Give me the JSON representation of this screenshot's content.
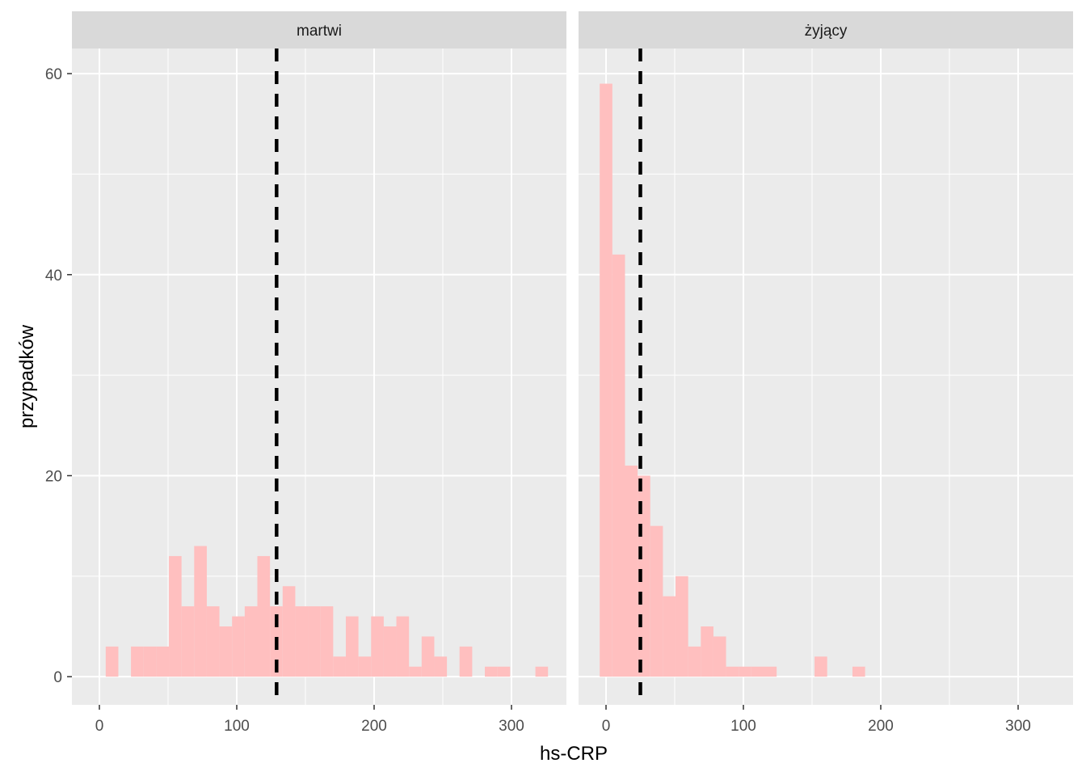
{
  "chart_data": {
    "type": "bar",
    "xlabel": "hs-CRP",
    "ylabel": "przypadków",
    "xlim": [
      -20,
      340
    ],
    "ylim": [
      -2.8,
      62.5
    ],
    "x_ticks": [
      0,
      100,
      200,
      300
    ],
    "y_ticks": [
      0,
      20,
      40,
      60
    ],
    "bin_width": 9.2,
    "grid": true,
    "colors": {
      "bar": "#ffbfbf",
      "panel_bg": "#ebebeb",
      "strip_bg": "#d9d9d9",
      "grid_major": "#ffffff",
      "vline": "#000000"
    },
    "panels": [
      {
        "label": "martwi",
        "mean_line": 129,
        "bins": [
          {
            "x": 9.2,
            "count": 3
          },
          {
            "x": 18.4,
            "count": 0
          },
          {
            "x": 27.6,
            "count": 3
          },
          {
            "x": 36.8,
            "count": 3
          },
          {
            "x": 46.0,
            "count": 3
          },
          {
            "x": 55.2,
            "count": 12
          },
          {
            "x": 64.4,
            "count": 7
          },
          {
            "x": 73.6,
            "count": 13
          },
          {
            "x": 82.8,
            "count": 7
          },
          {
            "x": 92.0,
            "count": 5
          },
          {
            "x": 101.2,
            "count": 6
          },
          {
            "x": 110.4,
            "count": 7
          },
          {
            "x": 119.6,
            "count": 12
          },
          {
            "x": 128.8,
            "count": 7
          },
          {
            "x": 138.0,
            "count": 9
          },
          {
            "x": 147.2,
            "count": 7
          },
          {
            "x": 156.4,
            "count": 7
          },
          {
            "x": 165.6,
            "count": 7
          },
          {
            "x": 174.8,
            "count": 2
          },
          {
            "x": 184.0,
            "count": 6
          },
          {
            "x": 193.2,
            "count": 2
          },
          {
            "x": 202.4,
            "count": 6
          },
          {
            "x": 211.6,
            "count": 5
          },
          {
            "x": 220.8,
            "count": 6
          },
          {
            "x": 230.0,
            "count": 1
          },
          {
            "x": 239.2,
            "count": 4
          },
          {
            "x": 248.4,
            "count": 2
          },
          {
            "x": 257.6,
            "count": 0
          },
          {
            "x": 266.8,
            "count": 3
          },
          {
            "x": 276.0,
            "count": 0
          },
          {
            "x": 285.2,
            "count": 1
          },
          {
            "x": 294.4,
            "count": 1
          },
          {
            "x": 303.6,
            "count": 0
          },
          {
            "x": 312.8,
            "count": 0
          },
          {
            "x": 322.0,
            "count": 1
          }
        ]
      },
      {
        "label": "żyjący",
        "mean_line": 25,
        "bins": [
          {
            "x": 0.0,
            "count": 59
          },
          {
            "x": 9.2,
            "count": 42
          },
          {
            "x": 18.4,
            "count": 21
          },
          {
            "x": 27.6,
            "count": 20
          },
          {
            "x": 36.8,
            "count": 15
          },
          {
            "x": 46.0,
            "count": 8
          },
          {
            "x": 55.2,
            "count": 10
          },
          {
            "x": 64.4,
            "count": 3
          },
          {
            "x": 73.6,
            "count": 5
          },
          {
            "x": 82.8,
            "count": 4
          },
          {
            "x": 92.0,
            "count": 1
          },
          {
            "x": 101.2,
            "count": 1
          },
          {
            "x": 110.4,
            "count": 1
          },
          {
            "x": 119.6,
            "count": 1
          },
          {
            "x": 128.8,
            "count": 0
          },
          {
            "x": 138.0,
            "count": 0
          },
          {
            "x": 147.2,
            "count": 0
          },
          {
            "x": 156.4,
            "count": 2
          },
          {
            "x": 165.6,
            "count": 0
          },
          {
            "x": 174.8,
            "count": 0
          },
          {
            "x": 184.0,
            "count": 1
          }
        ]
      }
    ]
  }
}
